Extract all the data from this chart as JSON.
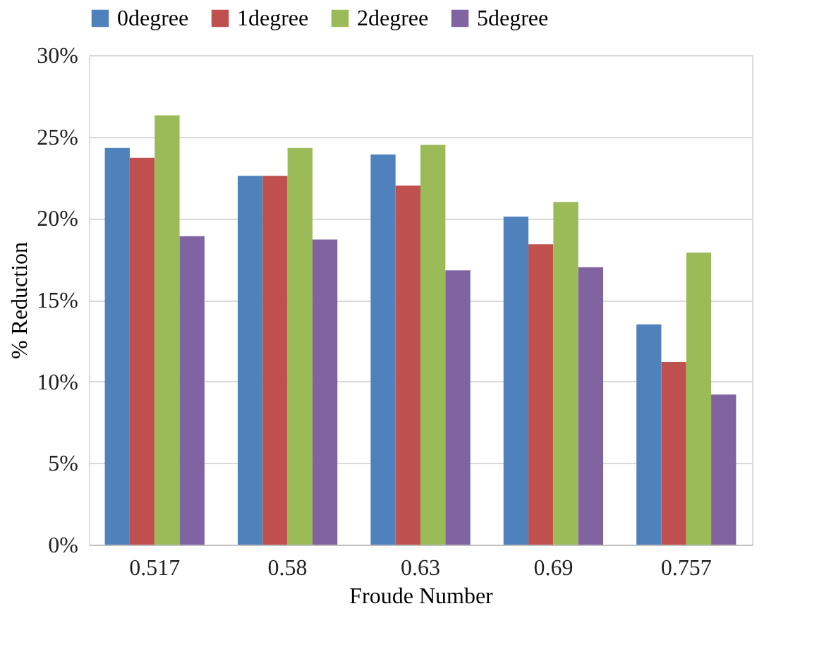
{
  "chart_data": {
    "type": "bar",
    "xlabel": "Froude Number",
    "ylabel": "% Reduction",
    "categories": [
      "0.517",
      "0.58",
      "0.63",
      "0.69",
      "0.757"
    ],
    "series": [
      {
        "name": "0degree",
        "color": "#4f81bd",
        "values": [
          24.3,
          22.6,
          23.9,
          20.1,
          13.5
        ]
      },
      {
        "name": "1degree",
        "color": "#c0504d",
        "values": [
          23.7,
          22.6,
          22.0,
          18.4,
          11.2
        ]
      },
      {
        "name": "2degree",
        "color": "#9bbb59",
        "values": [
          26.3,
          24.3,
          24.5,
          21.0,
          17.9
        ]
      },
      {
        "name": "5degree",
        "color": "#8064a2",
        "values": [
          18.9,
          18.7,
          16.8,
          17.0,
          9.2
        ]
      }
    ],
    "ylim": [
      0,
      30
    ],
    "yticks": [
      {
        "value": 0,
        "label": "0%"
      },
      {
        "value": 5,
        "label": "5%"
      },
      {
        "value": 10,
        "label": "10%"
      },
      {
        "value": 15,
        "label": "15%"
      },
      {
        "value": 20,
        "label": "20%"
      },
      {
        "value": 25,
        "label": "25%"
      },
      {
        "value": 30,
        "label": "30%"
      }
    ],
    "grid": "y",
    "legend": "top"
  }
}
